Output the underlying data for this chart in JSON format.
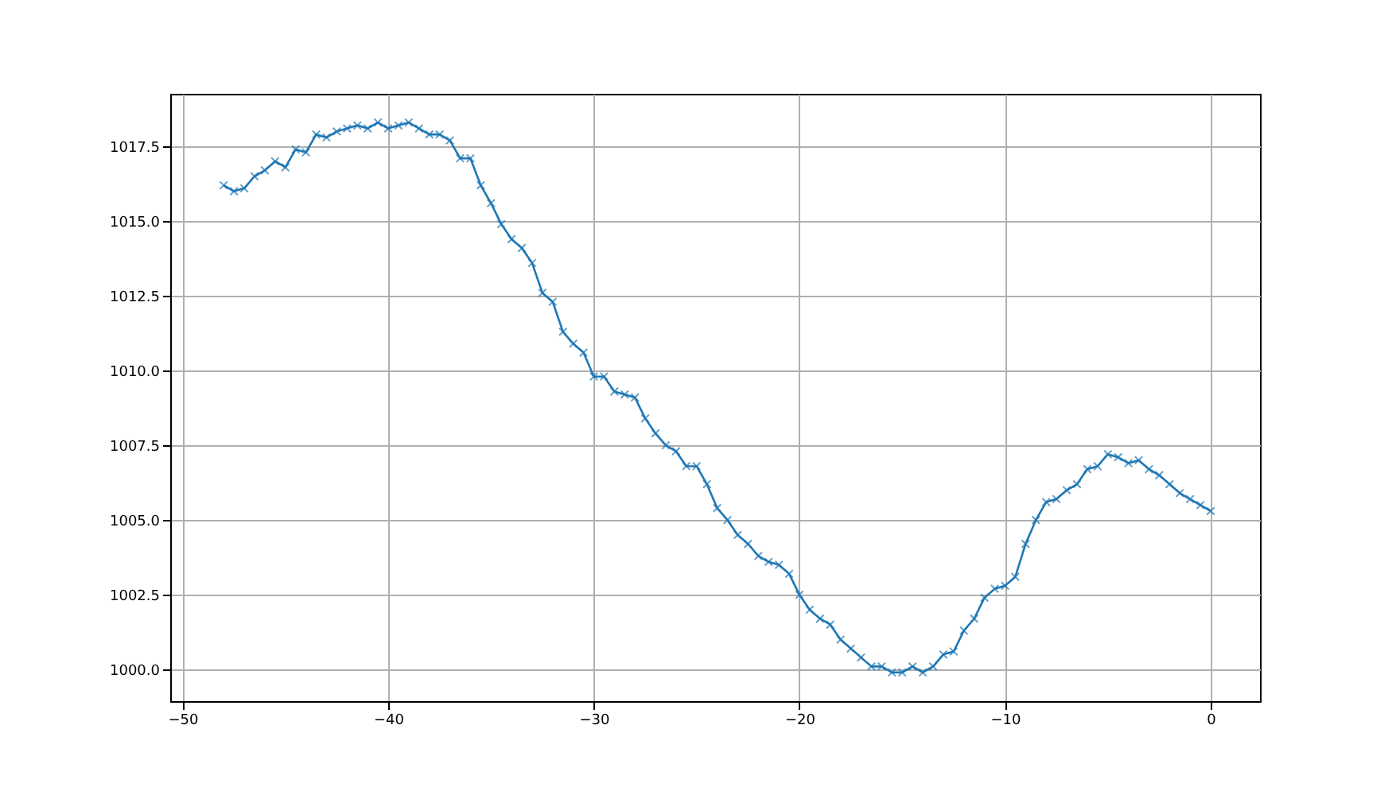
{
  "chart_data": {
    "type": "line",
    "x": [
      -48,
      -47.5,
      -47,
      -46.5,
      -46,
      -45.5,
      -45,
      -44.5,
      -44,
      -43.5,
      -43,
      -42.5,
      -42,
      -41.5,
      -41,
      -40.5,
      -40,
      -39.5,
      -39,
      -38.5,
      -38,
      -37.5,
      -37,
      -36.5,
      -36,
      -35.5,
      -35,
      -34.5,
      -34,
      -33.5,
      -33,
      -32.5,
      -32,
      -31.5,
      -31,
      -30.5,
      -30,
      -29.5,
      -29,
      -28.5,
      -28,
      -27.5,
      -27,
      -26.5,
      -26,
      -25.5,
      -25,
      -24.5,
      -24,
      -23.5,
      -23,
      -22.5,
      -22,
      -21.5,
      -21,
      -20.5,
      -20,
      -19.5,
      -19,
      -18.5,
      -18,
      -17.5,
      -17,
      -16.5,
      -16,
      -15.5,
      -15,
      -14.5,
      -14,
      -13.5,
      -13,
      -12.5,
      -12,
      -11.5,
      -11,
      -10.5,
      -10,
      -9.5,
      -9,
      -8.5,
      -8,
      -7.5,
      -7,
      -6.5,
      -6,
      -5.5,
      -5,
      -4.5,
      -4,
      -3.5,
      -3,
      -2.5,
      -2,
      -1.5,
      -1,
      -0.5,
      0
    ],
    "series": [
      {
        "color": "#1f77b4",
        "values": [
          1016.2,
          1016.0,
          1016.1,
          1016.5,
          1016.7,
          1017.0,
          1016.8,
          1017.4,
          1017.3,
          1017.9,
          1017.8,
          1018.0,
          1018.1,
          1018.2,
          1018.1,
          1018.3,
          1018.1,
          1018.2,
          1018.3,
          1018.1,
          1017.9,
          1017.9,
          1017.7,
          1017.1,
          1017.1,
          1016.2,
          1015.6,
          1014.9,
          1014.4,
          1014.1,
          1013.6,
          1012.6,
          1012.3,
          1011.3,
          1010.9,
          1010.6,
          1009.8,
          1009.8,
          1009.3,
          1009.2,
          1009.1,
          1008.4,
          1007.9,
          1007.5,
          1007.3,
          1006.8,
          1006.8,
          1006.2,
          1005.4,
          1005.0,
          1004.5,
          1004.2,
          1003.8,
          1003.6,
          1003.5,
          1003.2,
          1002.5,
          1002.0,
          1001.7,
          1001.5,
          1001.0,
          1000.7,
          1000.4,
          1000.1,
          1000.1,
          999.9,
          999.9,
          1000.1,
          999.9,
          1000.1,
          1000.5,
          1000.6,
          1001.3,
          1001.7,
          1002.4,
          1002.7,
          1002.8,
          1003.1,
          1004.2,
          1005.0,
          1005.6,
          1005.7,
          1006.0,
          1006.2,
          1006.7,
          1006.8,
          1007.2,
          1007.1,
          1006.9,
          1007.0,
          1006.7,
          1006.5,
          1006.2,
          1005.9,
          1005.7,
          1005.5,
          1005.3
        ]
      }
    ],
    "xlim": [
      -50.6,
      2.4
    ],
    "xticks": [
      -50,
      -40,
      -30,
      -20,
      -10,
      0
    ],
    "ylim": [
      998.94,
      1019.26
    ],
    "yticks": [
      {
        "value": 1000,
        "label": "1000.0"
      },
      {
        "value": 1002.5,
        "label": "1002.5"
      },
      {
        "value": 1005,
        "label": "1005.0"
      },
      {
        "value": 1007.5,
        "label": "1007.5"
      },
      {
        "value": 1010,
        "label": "1010.0"
      },
      {
        "value": 1012.5,
        "label": "1012.5"
      },
      {
        "value": 1015,
        "label": "1015.0"
      },
      {
        "value": 1017.5,
        "label": "1017.5"
      }
    ],
    "grid": true,
    "marker": "cross",
    "line_style": "solid",
    "legend": false
  }
}
